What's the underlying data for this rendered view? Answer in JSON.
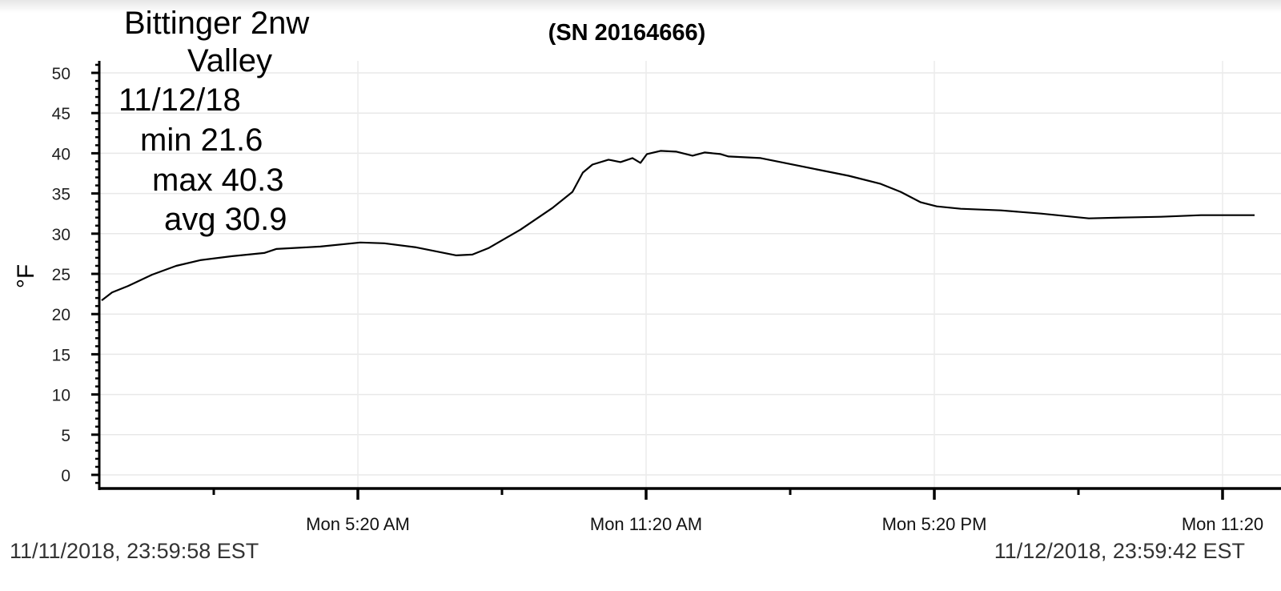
{
  "chart_data": {
    "type": "line",
    "title": "(SN 20164666)",
    "ylabel": "°F",
    "xlabel": "",
    "ylim": [
      -1.5,
      51.5
    ],
    "yticks": [
      0,
      5,
      10,
      15,
      20,
      25,
      30,
      35,
      40,
      45,
      50
    ],
    "xlim": [
      "00:00",
      "24:00"
    ],
    "xticks_major": [
      {
        "t": "05:20",
        "label": "Mon 5:20 AM"
      },
      {
        "t": "11:20",
        "label": "Mon 11:20 AM"
      },
      {
        "t": "17:20",
        "label": "Mon 5:20 PM"
      },
      {
        "t": "23:20",
        "label": "Mon 11:20"
      }
    ],
    "xticks_minor": [
      "02:20",
      "08:20",
      "14:20",
      "20:20"
    ],
    "grid": true,
    "line_color": "#000000",
    "x": [
      "00:00",
      "00:13",
      "00:33",
      "01:03",
      "01:33",
      "02:03",
      "02:43",
      "03:23",
      "03:38",
      "04:33",
      "05:23",
      "05:53",
      "06:33",
      "07:23",
      "07:43",
      "08:03",
      "08:43",
      "09:23",
      "09:48",
      "10:01",
      "10:13",
      "10:33",
      "10:48",
      "11:03",
      "11:13",
      "11:21",
      "11:38",
      "11:58",
      "12:18",
      "12:33",
      "12:53",
      "13:03",
      "13:43",
      "14:13",
      "14:53",
      "15:33",
      "16:13",
      "16:38",
      "17:03",
      "17:23",
      "17:53",
      "18:43",
      "19:33",
      "20:33",
      "21:13",
      "22:03",
      "22:53",
      "24:00"
    ],
    "values": [
      21.7,
      22.7,
      23.5,
      24.9,
      26.0,
      26.7,
      27.2,
      27.6,
      28.1,
      28.4,
      28.9,
      28.8,
      28.3,
      27.3,
      27.4,
      28.2,
      30.5,
      33.2,
      35.2,
      37.6,
      38.6,
      39.2,
      38.9,
      39.4,
      38.8,
      39.9,
      40.3,
      40.2,
      39.7,
      40.1,
      39.9,
      39.6,
      39.4,
      38.8,
      38.0,
      37.2,
      36.2,
      35.2,
      33.9,
      33.4,
      33.1,
      32.9,
      32.5,
      31.9,
      32.0,
      32.1,
      32.3,
      32.3
    ],
    "annotation": {
      "station": "Bittinger 2nw",
      "site": "Valley",
      "date": "11/12/18",
      "min": "min 21.6",
      "max": "max 40.3",
      "avg": "avg 30.9"
    },
    "range_start": "11/11/2018, 23:59:58 EST",
    "range_end": "11/12/2018, 23:59:42 EST"
  }
}
